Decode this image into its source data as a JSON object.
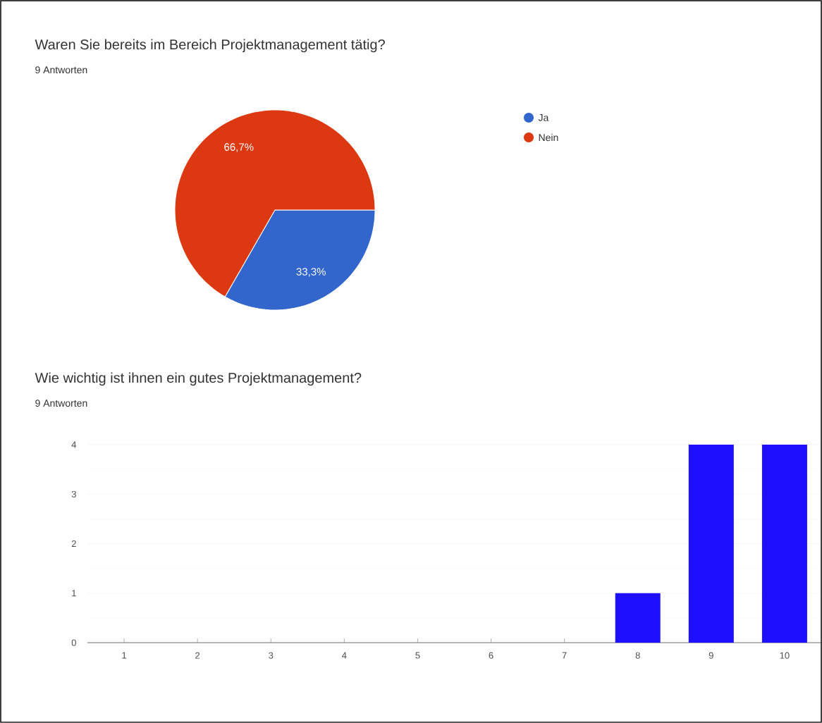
{
  "chart_data": [
    {
      "type": "pie",
      "title": "Waren Sie bereits im Bereich Projektmanagement tätig?",
      "subtitle": "9 Antworten",
      "categories": [
        "Ja",
        "Nein"
      ],
      "values": [
        33.3,
        66.7
      ],
      "colors": [
        "#3366cc",
        "#dc3912"
      ],
      "value_labels": [
        "33,3%",
        "66,7%"
      ],
      "legend": "top right"
    },
    {
      "type": "bar",
      "title": "Wie wichtig ist ihnen ein gutes Projektmanagement?",
      "subtitle": "9 Antworten",
      "categories": [
        "1",
        "2",
        "3",
        "4",
        "5",
        "6",
        "7",
        "8",
        "9",
        "10"
      ],
      "values": [
        0,
        0,
        0,
        0,
        0,
        0,
        0,
        1,
        4,
        4
      ],
      "color": "#1f0fff",
      "ylim": [
        0,
        4
      ],
      "yticks": [
        0,
        1,
        2,
        3,
        4
      ],
      "grid": "y"
    }
  ]
}
